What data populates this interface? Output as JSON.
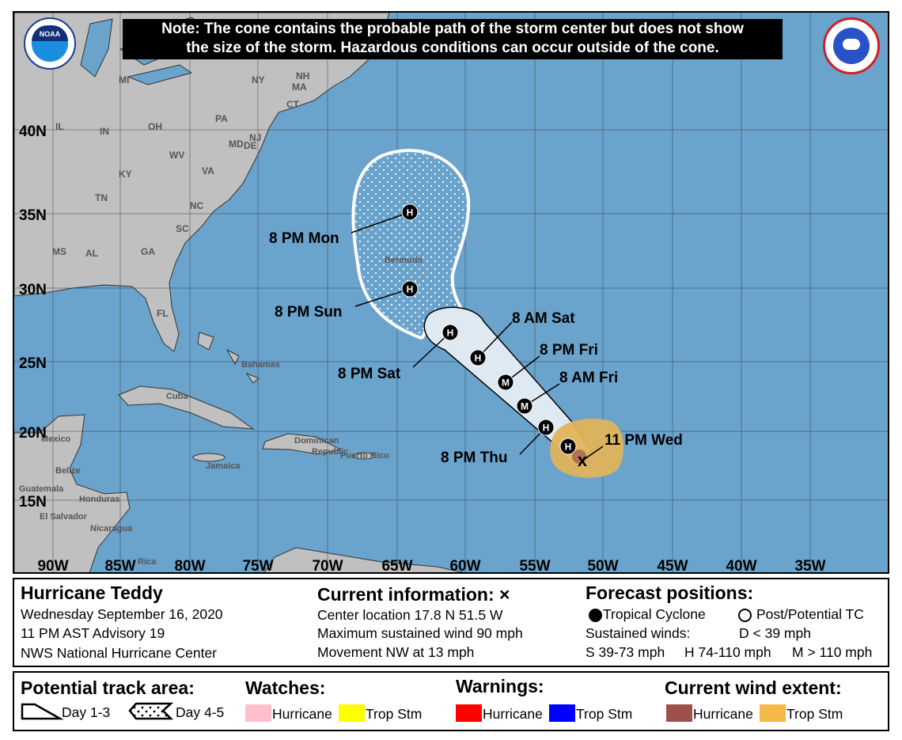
{
  "note": {
    "line1": "Note: The cone contains the probable path of the storm center but does not show",
    "line2": "the size of the storm. Hazardous conditions can occur outside of the cone."
  },
  "logos": {
    "left": "NOAA",
    "right": "NATIONAL WEATHER SERVICE"
  },
  "axes": {
    "lat_labels": [
      "40N",
      "35N",
      "30N",
      "25N",
      "20N",
      "15N"
    ],
    "lon_labels": [
      "90W",
      "85W",
      "80W",
      "75W",
      "70W",
      "65W",
      "60W",
      "55W",
      "50W",
      "45W",
      "40W",
      "35W"
    ]
  },
  "places": {
    "states": [
      "MI",
      "NY",
      "NH",
      "MA",
      "CT",
      "PA",
      "IL",
      "IN",
      "OH",
      "NJ",
      "MD",
      "DE",
      "WV",
      "VA",
      "KY",
      "TN",
      "NC",
      "SC",
      "MS",
      "AL",
      "GA",
      "FL"
    ],
    "countries": [
      "Bermuda",
      "Bahamas",
      "Cuba",
      "Mexico",
      "Belize",
      "Dominican",
      "Republic",
      "Puerto Rico",
      "Jamaica",
      "Guatemala",
      "Honduras",
      "El Salvador",
      "Nicaragua",
      "Rica"
    ]
  },
  "track": {
    "current_marker": "x",
    "points": [
      {
        "label": "11 PM Wed",
        "type": "H"
      },
      {
        "label": "8 PM Thu",
        "type": "H"
      },
      {
        "label": "8 AM Fri",
        "type": "M"
      },
      {
        "label": "8 PM Fri",
        "type": "M"
      },
      {
        "label": "8 AM Sat",
        "type": "H"
      },
      {
        "label": "8 PM Sat",
        "type": "H"
      },
      {
        "label": "8 PM Sun",
        "type": "H"
      },
      {
        "label": "8 PM Mon",
        "type": "H"
      }
    ]
  },
  "info": {
    "storm_name": "Hurricane Teddy",
    "date": "Wednesday September 16, 2020",
    "advisory": "11 PM AST Advisory 19",
    "source": "NWS National Hurricane Center",
    "current_title": "Current information: ×",
    "center_location": "Center location 17.8 N 51.5 W",
    "max_wind": "Maximum sustained wind 90 mph",
    "movement": "Movement NW at 13 mph",
    "forecast_title": "Forecast positions:",
    "tropical_cyclone": "Tropical Cyclone",
    "post_potential": "Post/Potential TC",
    "sustained_winds": "Sustained winds:",
    "d_range": "D < 39 mph",
    "s_range": "S 39-73 mph",
    "h_range": "H 74-110 mph",
    "m_range": "M > 110 mph"
  },
  "legend": {
    "track_title": "Potential track area:",
    "day13": "Day 1-3",
    "day45": "Day 4-5",
    "watches_title": "Watches:",
    "warnings_title": "Warnings:",
    "wind_title": "Current wind extent:",
    "hurricane": "Hurricane",
    "trop_stm": "Trop Stm",
    "colors": {
      "watch_hurricane": "#ffc0cb",
      "watch_trop_stm": "#ffff00",
      "warning_hurricane": "#ff0000",
      "warning_trop_stm": "#0000ff",
      "wind_hurricane": "#a0504a",
      "wind_trop_stm": "#f5b94a"
    }
  }
}
